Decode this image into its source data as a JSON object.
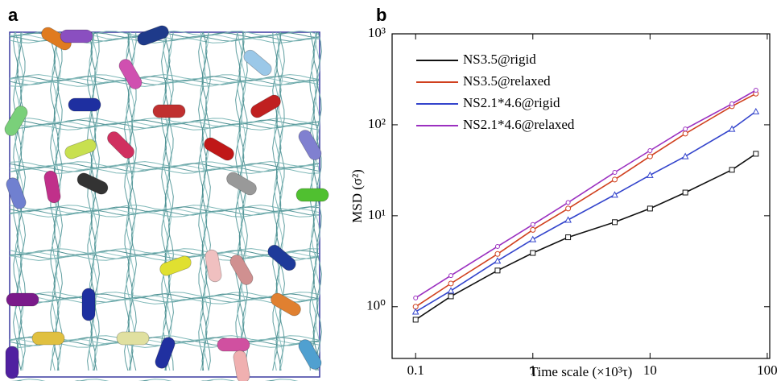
{
  "panel_a": {
    "label": "a"
  },
  "chart_data": {
    "type": "line",
    "panel_label": "b",
    "x_label": "Time scale (×10³τ)",
    "y_label": "MSD (σ²)",
    "x": [
      0.1,
      0.2,
      0.5,
      1,
      2,
      5,
      10,
      20,
      50,
      80
    ],
    "series": [
      {
        "name": "NS3.5@rigid",
        "color": "#111111",
        "values": [
          0.72,
          1.3,
          2.5,
          3.9,
          5.8,
          8.5,
          12,
          18,
          32,
          48
        ]
      },
      {
        "name": "NS3.5@relaxed",
        "color": "#d0401e",
        "values": [
          1.0,
          1.8,
          3.8,
          7,
          12,
          25,
          45,
          80,
          160,
          220
        ]
      },
      {
        "name": "NS2.1*4.6@rigid",
        "color": "#3344cc",
        "values": [
          0.88,
          1.5,
          3.2,
          5.5,
          9,
          17,
          28,
          45,
          90,
          140
        ]
      },
      {
        "name": "NS2.1*4.6@relaxed",
        "color": "#9b30c0",
        "values": [
          1.25,
          2.2,
          4.6,
          8,
          14,
          30,
          52,
          90,
          170,
          240
        ]
      }
    ],
    "xlim": [
      0.063,
      105
    ],
    "ylim": [
      0.27,
      1000
    ],
    "xticks": [
      0.1,
      1,
      10,
      100
    ],
    "yticks": [
      {
        "value": 1,
        "label": "10⁰"
      },
      {
        "value": 10,
        "label": "10¹"
      },
      {
        "value": 100,
        "label": "10²"
      },
      {
        "value": 1000,
        "label": "10³"
      }
    ],
    "log_x": true,
    "log_y": true,
    "legend": "upper left"
  }
}
